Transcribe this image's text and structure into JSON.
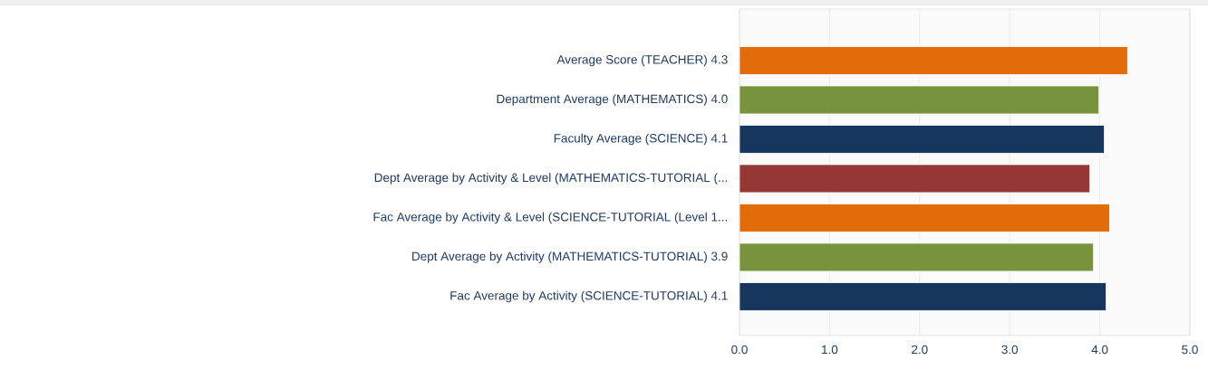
{
  "chart_data": {
    "type": "bar",
    "orientation": "horizontal",
    "categories": [
      "Average Score (TEACHER)  4.3",
      "Department Average (MATHEMATICS)  4.0",
      "Faculty Average (SCIENCE)  4.1",
      "Dept Average by Activity & Level (MATHEMATICS-TUTORIAL (...",
      "Fac Average by Activity & Level (SCIENCE-TUTORIAL (Level 1...",
      "Dept Average by Activity (MATHEMATICS-TUTORIAL)  3.9",
      "Fac Average by Activity (SCIENCE-TUTORIAL)  4.1"
    ],
    "values": [
      4.31,
      3.99,
      4.05,
      3.89,
      4.11,
      3.93,
      4.07
    ],
    "colors": [
      "#e36c0a",
      "#77933c",
      "#17365d",
      "#953735",
      "#e36c0a",
      "#77933c",
      "#17365d"
    ],
    "xlim": [
      0,
      5
    ],
    "xticks": [
      {
        "value": 0,
        "label": "0.0"
      },
      {
        "value": 1,
        "label": "1.0"
      },
      {
        "value": 2,
        "label": "2.0"
      },
      {
        "value": 3,
        "label": "3.0"
      },
      {
        "value": 4,
        "label": "4.0"
      },
      {
        "value": 5,
        "label": "5.0"
      }
    ],
    "grid": "x"
  }
}
